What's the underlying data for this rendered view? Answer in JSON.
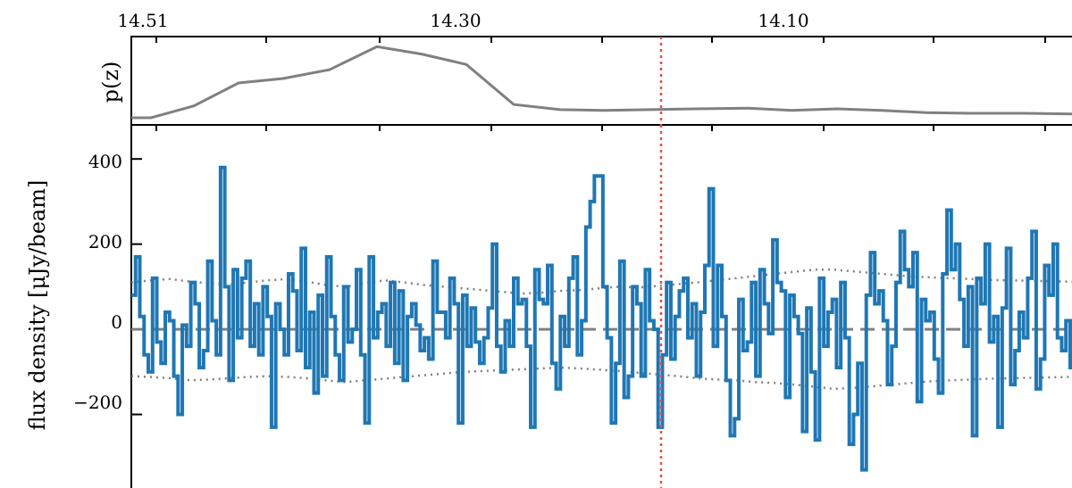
{
  "chart_data": [
    {
      "type": "line",
      "panel": "top",
      "ylabel": "p(z)",
      "top_axis_tick_labels": [
        "14.51",
        "14.30",
        "14.10"
      ],
      "grid": false,
      "line_color": "#808080",
      "x": [
        0,
        22,
        70,
        120,
        170,
        222,
        275,
        325,
        375,
        428,
        480,
        530,
        580,
        632,
        690,
        740,
        790,
        840,
        890,
        940,
        1000,
        1060,
        1110,
        1160,
        1200
      ],
      "y": [
        0.0,
        0.0,
        0.16,
        0.47,
        0.53,
        0.65,
        0.96,
        0.86,
        0.72,
        0.18,
        0.11,
        0.1,
        0.11,
        0.12,
        0.13,
        0.1,
        0.12,
        0.1,
        0.07,
        0.06,
        0.06,
        0.05,
        0.04,
        0.03,
        0.05
      ],
      "vline_color": "#e05050"
    },
    {
      "type": "line",
      "panel": "bottom",
      "ylabel": "flux density [μJy/beam]",
      "ytick_labels": [
        "400",
        "200",
        "0",
        "−200"
      ],
      "yticks": [
        400,
        200,
        0,
        -200
      ],
      "ylim": [
        -400,
        480
      ],
      "grid": false,
      "spectrum_color": "#1f77b4",
      "noise_color": "#808080",
      "noise_upper": [
        110,
        115,
        118,
        112,
        108,
        105,
        110,
        115,
        118,
        112,
        104,
        100,
        108,
        115,
        110,
        104,
        100,
        96,
        92,
        88,
        84,
        86,
        90,
        92,
        96,
        100,
        98,
        102,
        106,
        110,
        115,
        120,
        125,
        130,
        135,
        140,
        140,
        136,
        132,
        128,
        124,
        122,
        120,
        118,
        116,
        115,
        114,
        113,
        112,
        111
      ],
      "noise_lower": [
        -110,
        -112,
        -115,
        -120,
        -118,
        -115,
        -112,
        -110,
        -112,
        -115,
        -120,
        -124,
        -120,
        -116,
        -112,
        -108,
        -104,
        -100,
        -98,
        -96,
        -94,
        -92,
        -90,
        -92,
        -95,
        -98,
        -102,
        -106,
        -110,
        -115,
        -118,
        -120,
        -124,
        -126,
        -130,
        -135,
        -140,
        -138,
        -134,
        -130,
        -126,
        -122,
        -120,
        -118,
        -116,
        -115,
        -114,
        -113,
        -112,
        -111
      ],
      "flux_values": [
        80,
        170,
        30,
        -60,
        -100,
        120,
        -30,
        -80,
        40,
        20,
        -110,
        -200,
        10,
        -40,
        110,
        60,
        -90,
        -50,
        160,
        20,
        -60,
        380,
        100,
        -120,
        140,
        -20,
        120,
        160,
        -40,
        60,
        -60,
        100,
        30,
        -230,
        60,
        0,
        -60,
        130,
        90,
        -50,
        190,
        -90,
        40,
        -150,
        80,
        -110,
        170,
        30,
        -60,
        -120,
        100,
        -30,
        0,
        140,
        -60,
        -220,
        170,
        -20,
        40,
        60,
        -40,
        110,
        -80,
        90,
        -120,
        30,
        60,
        10,
        -50,
        -20,
        -70,
        160,
        40,
        40,
        -20,
        120,
        60,
        -220,
        80,
        -40,
        50,
        -30,
        -80,
        -20,
        50,
        200,
        -40,
        -100,
        20,
        -40,
        120,
        60,
        70,
        -40,
        -230,
        140,
        70,
        60,
        150,
        -80,
        -140,
        30,
        -40,
        120,
        170,
        -60,
        20,
        240,
        300,
        360,
        360,
        100,
        -20,
        -220,
        -80,
        160,
        -160,
        -110,
        100,
        60,
        -110,
        140,
        20,
        0,
        -230,
        -60,
        110,
        -70,
        30,
        90,
        120,
        -20,
        60,
        -110,
        40,
        150,
        330,
        -40,
        150,
        30,
        -120,
        -250,
        -210,
        70,
        -50,
        -30,
        110,
        -110,
        140,
        60,
        -10,
        210,
        110,
        90,
        -160,
        80,
        30,
        -10,
        -240,
        50,
        -100,
        -260,
        120,
        -40,
        40,
        70,
        -90,
        110,
        -20,
        -270,
        -200,
        -80,
        -330,
        80,
        180,
        60,
        90,
        20,
        -130,
        -40,
        110,
        230,
        140,
        100,
        180,
        -170,
        70,
        20,
        40,
        -70,
        -150,
        130,
        280,
        140,
        200,
        70,
        -40,
        100,
        -250,
        120,
        60,
        200,
        -30,
        30,
        -230,
        50,
        190,
        -130,
        -50,
        40,
        -20,
        120,
        230,
        -140,
        -70,
        150,
        80,
        200,
        -20,
        -50,
        20,
        -90,
        -50,
        40,
        20
      ],
      "vline_color": "#e05050"
    }
  ]
}
